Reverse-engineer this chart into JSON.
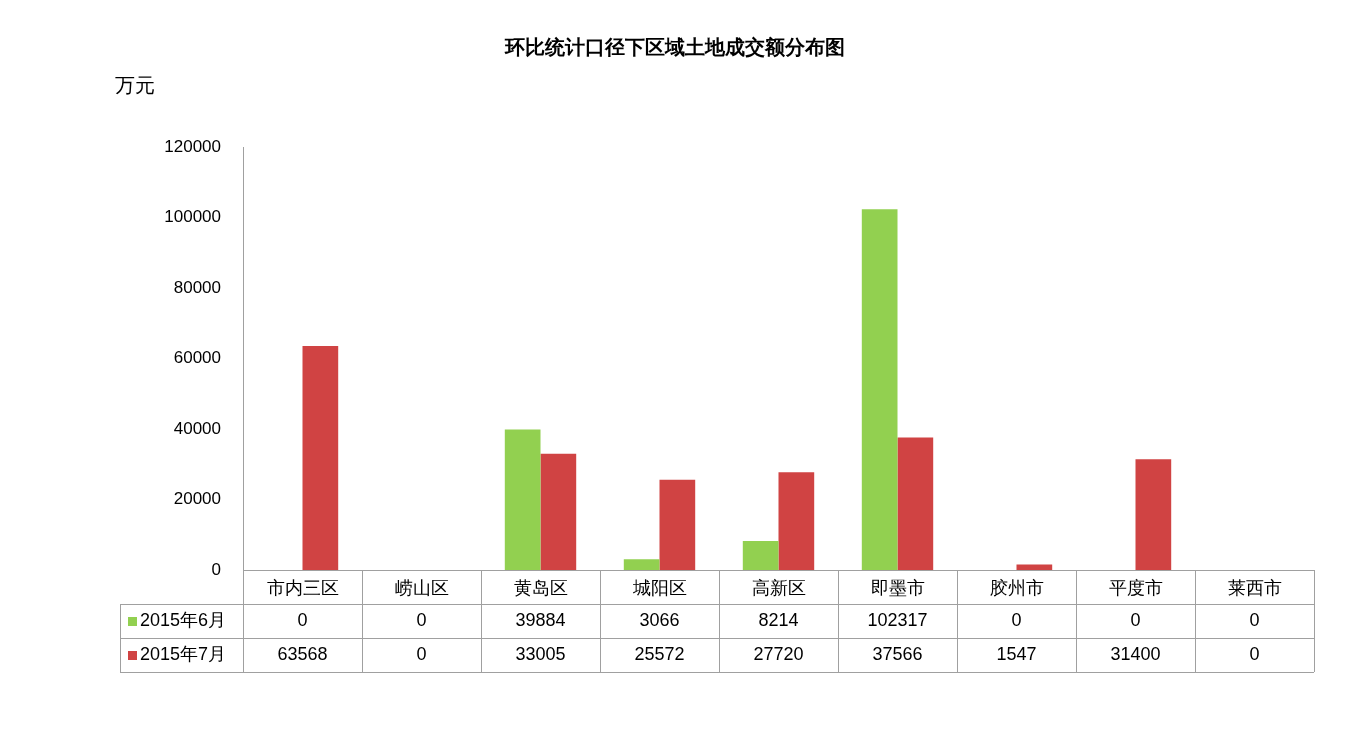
{
  "chart_data": {
    "type": "bar",
    "title": "环比统计口径下区域土地成交额分布图",
    "ylabel": "万元",
    "categories": [
      "市内三区",
      "崂山区",
      "黄岛区",
      "城阳区",
      "高新区",
      "即墨市",
      "胶州市",
      "平度市",
      "莱西市"
    ],
    "series": [
      {
        "name": "2015年6月",
        "color": "#92d050",
        "values": [
          0,
          0,
          39884,
          3066,
          8214,
          102317,
          0,
          0,
          0
        ]
      },
      {
        "name": "2015年7月",
        "color": "#d04343",
        "values": [
          63568,
          0,
          33005,
          25572,
          27720,
          37566,
          1547,
          31400,
          0
        ]
      }
    ],
    "ylim": [
      0,
      120000
    ],
    "yticks": [
      0,
      20000,
      40000,
      60000,
      80000,
      100000,
      120000
    ],
    "grid": false,
    "legend": "bottom",
    "data_labels": true
  }
}
